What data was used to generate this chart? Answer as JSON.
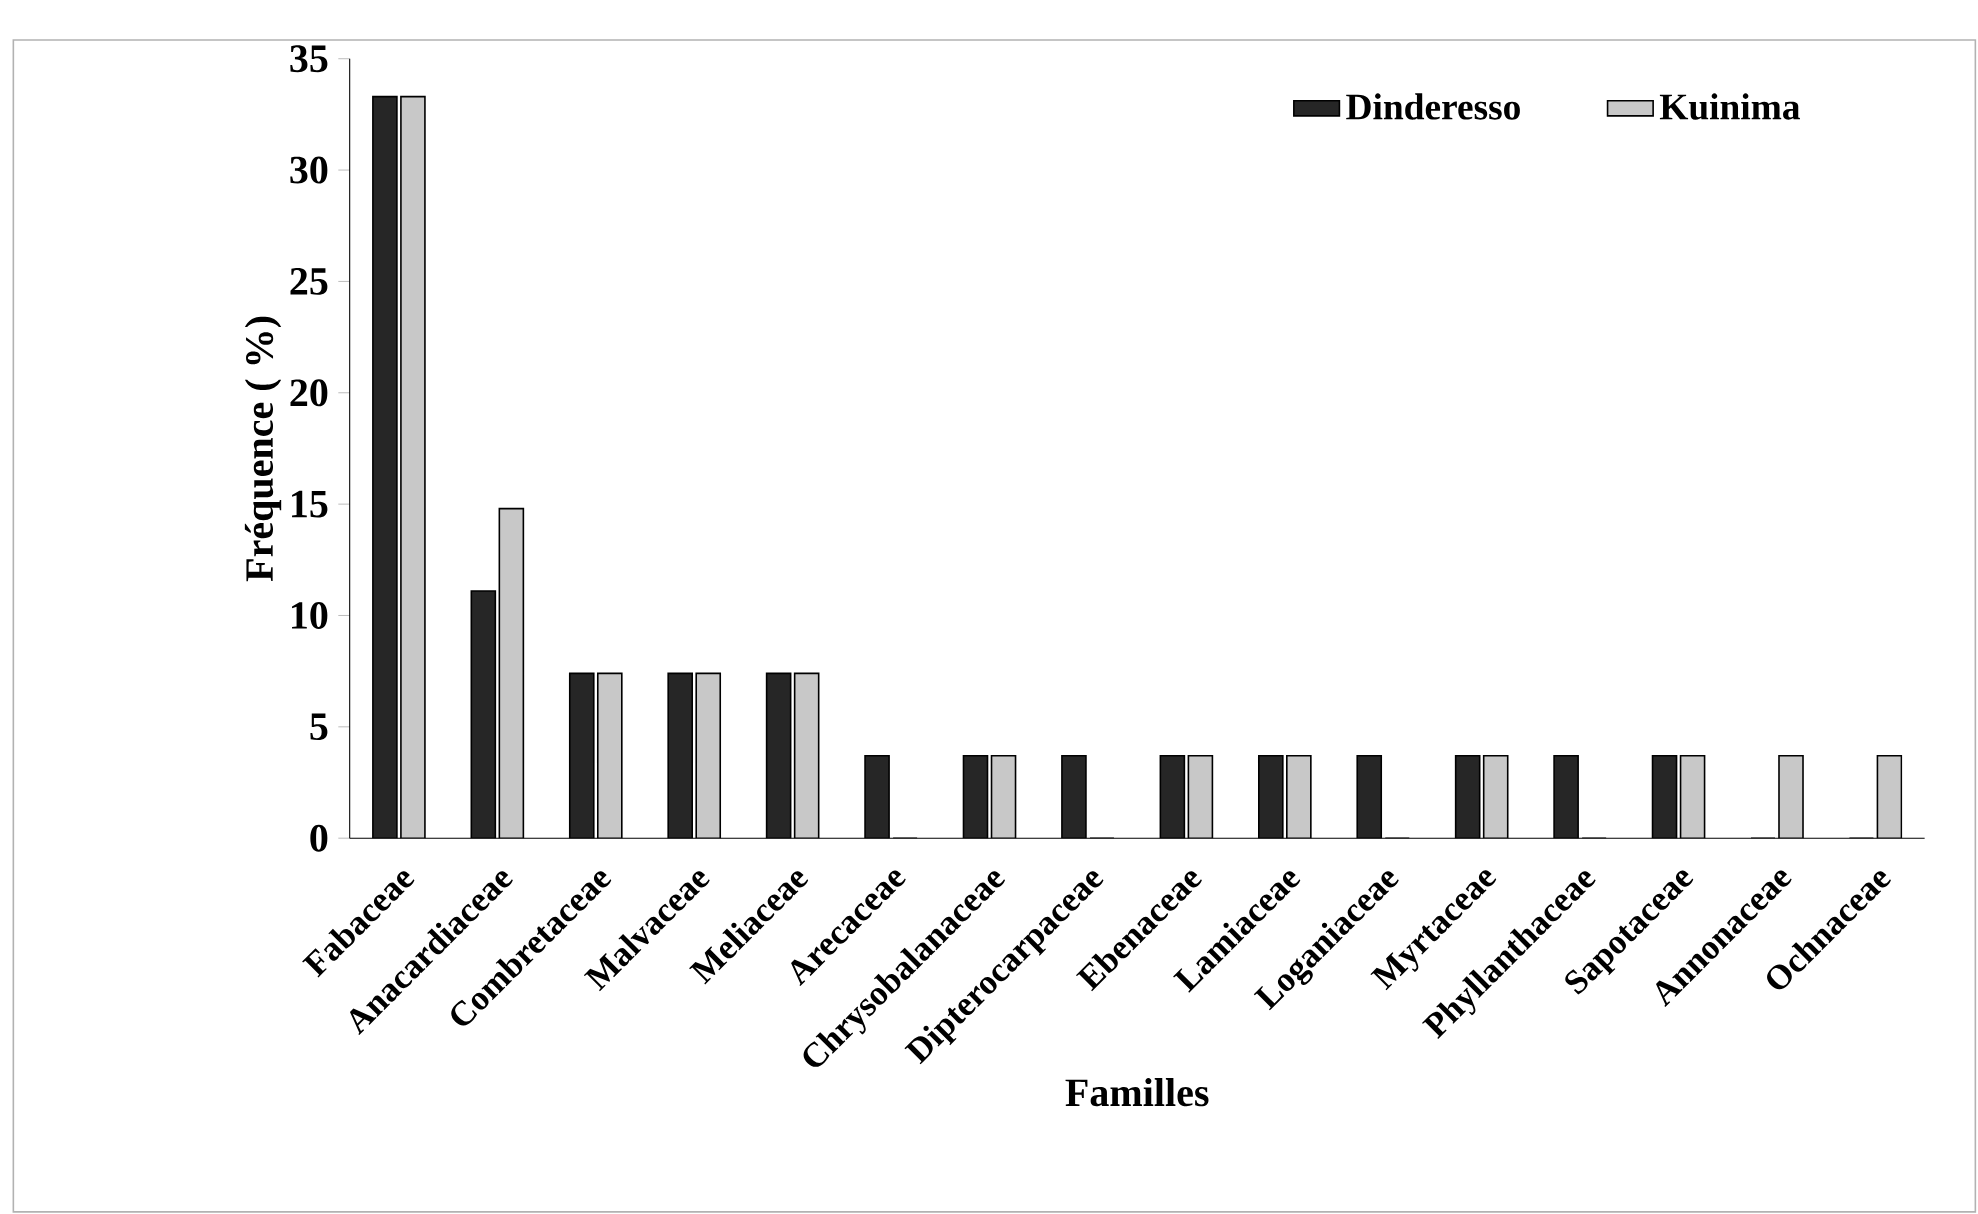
{
  "chart_data": {
    "type": "bar",
    "xlabel": "Familles",
    "ylabel": "Fréquence ( %)",
    "categories": [
      "Fabaceae",
      "Anacardiaceae",
      "Combretaceae",
      "Malvaceae",
      "Meliaceae",
      "Arecaceae",
      "Chrysobalanaceae",
      "Dipterocarpaceae",
      "Ebenaceae",
      "Lamiaceae",
      "Loganiaceae",
      "Myrtaceae",
      "Phyllanthaceae",
      "Sapotaceae",
      "Annonaceae",
      "Ochnaceae"
    ],
    "series": [
      {
        "name": "Dinderesso",
        "color": "#262626",
        "values": [
          33.3,
          11.1,
          7.4,
          7.4,
          7.4,
          3.7,
          3.7,
          3.7,
          3.7,
          3.7,
          3.7,
          3.7,
          3.7,
          3.7,
          0,
          0
        ]
      },
      {
        "name": "Kuinima",
        "color": "#c8c8c8",
        "values": [
          33.3,
          14.8,
          7.4,
          7.4,
          7.4,
          0,
          3.7,
          0,
          3.7,
          3.7,
          0,
          3.7,
          0,
          3.7,
          3.7,
          3.7
        ]
      }
    ],
    "ylim": [
      0,
      35
    ],
    "yticks": [
      0,
      5,
      10,
      15,
      20,
      25,
      30,
      35
    ],
    "grid": false,
    "legend": "top right"
  }
}
